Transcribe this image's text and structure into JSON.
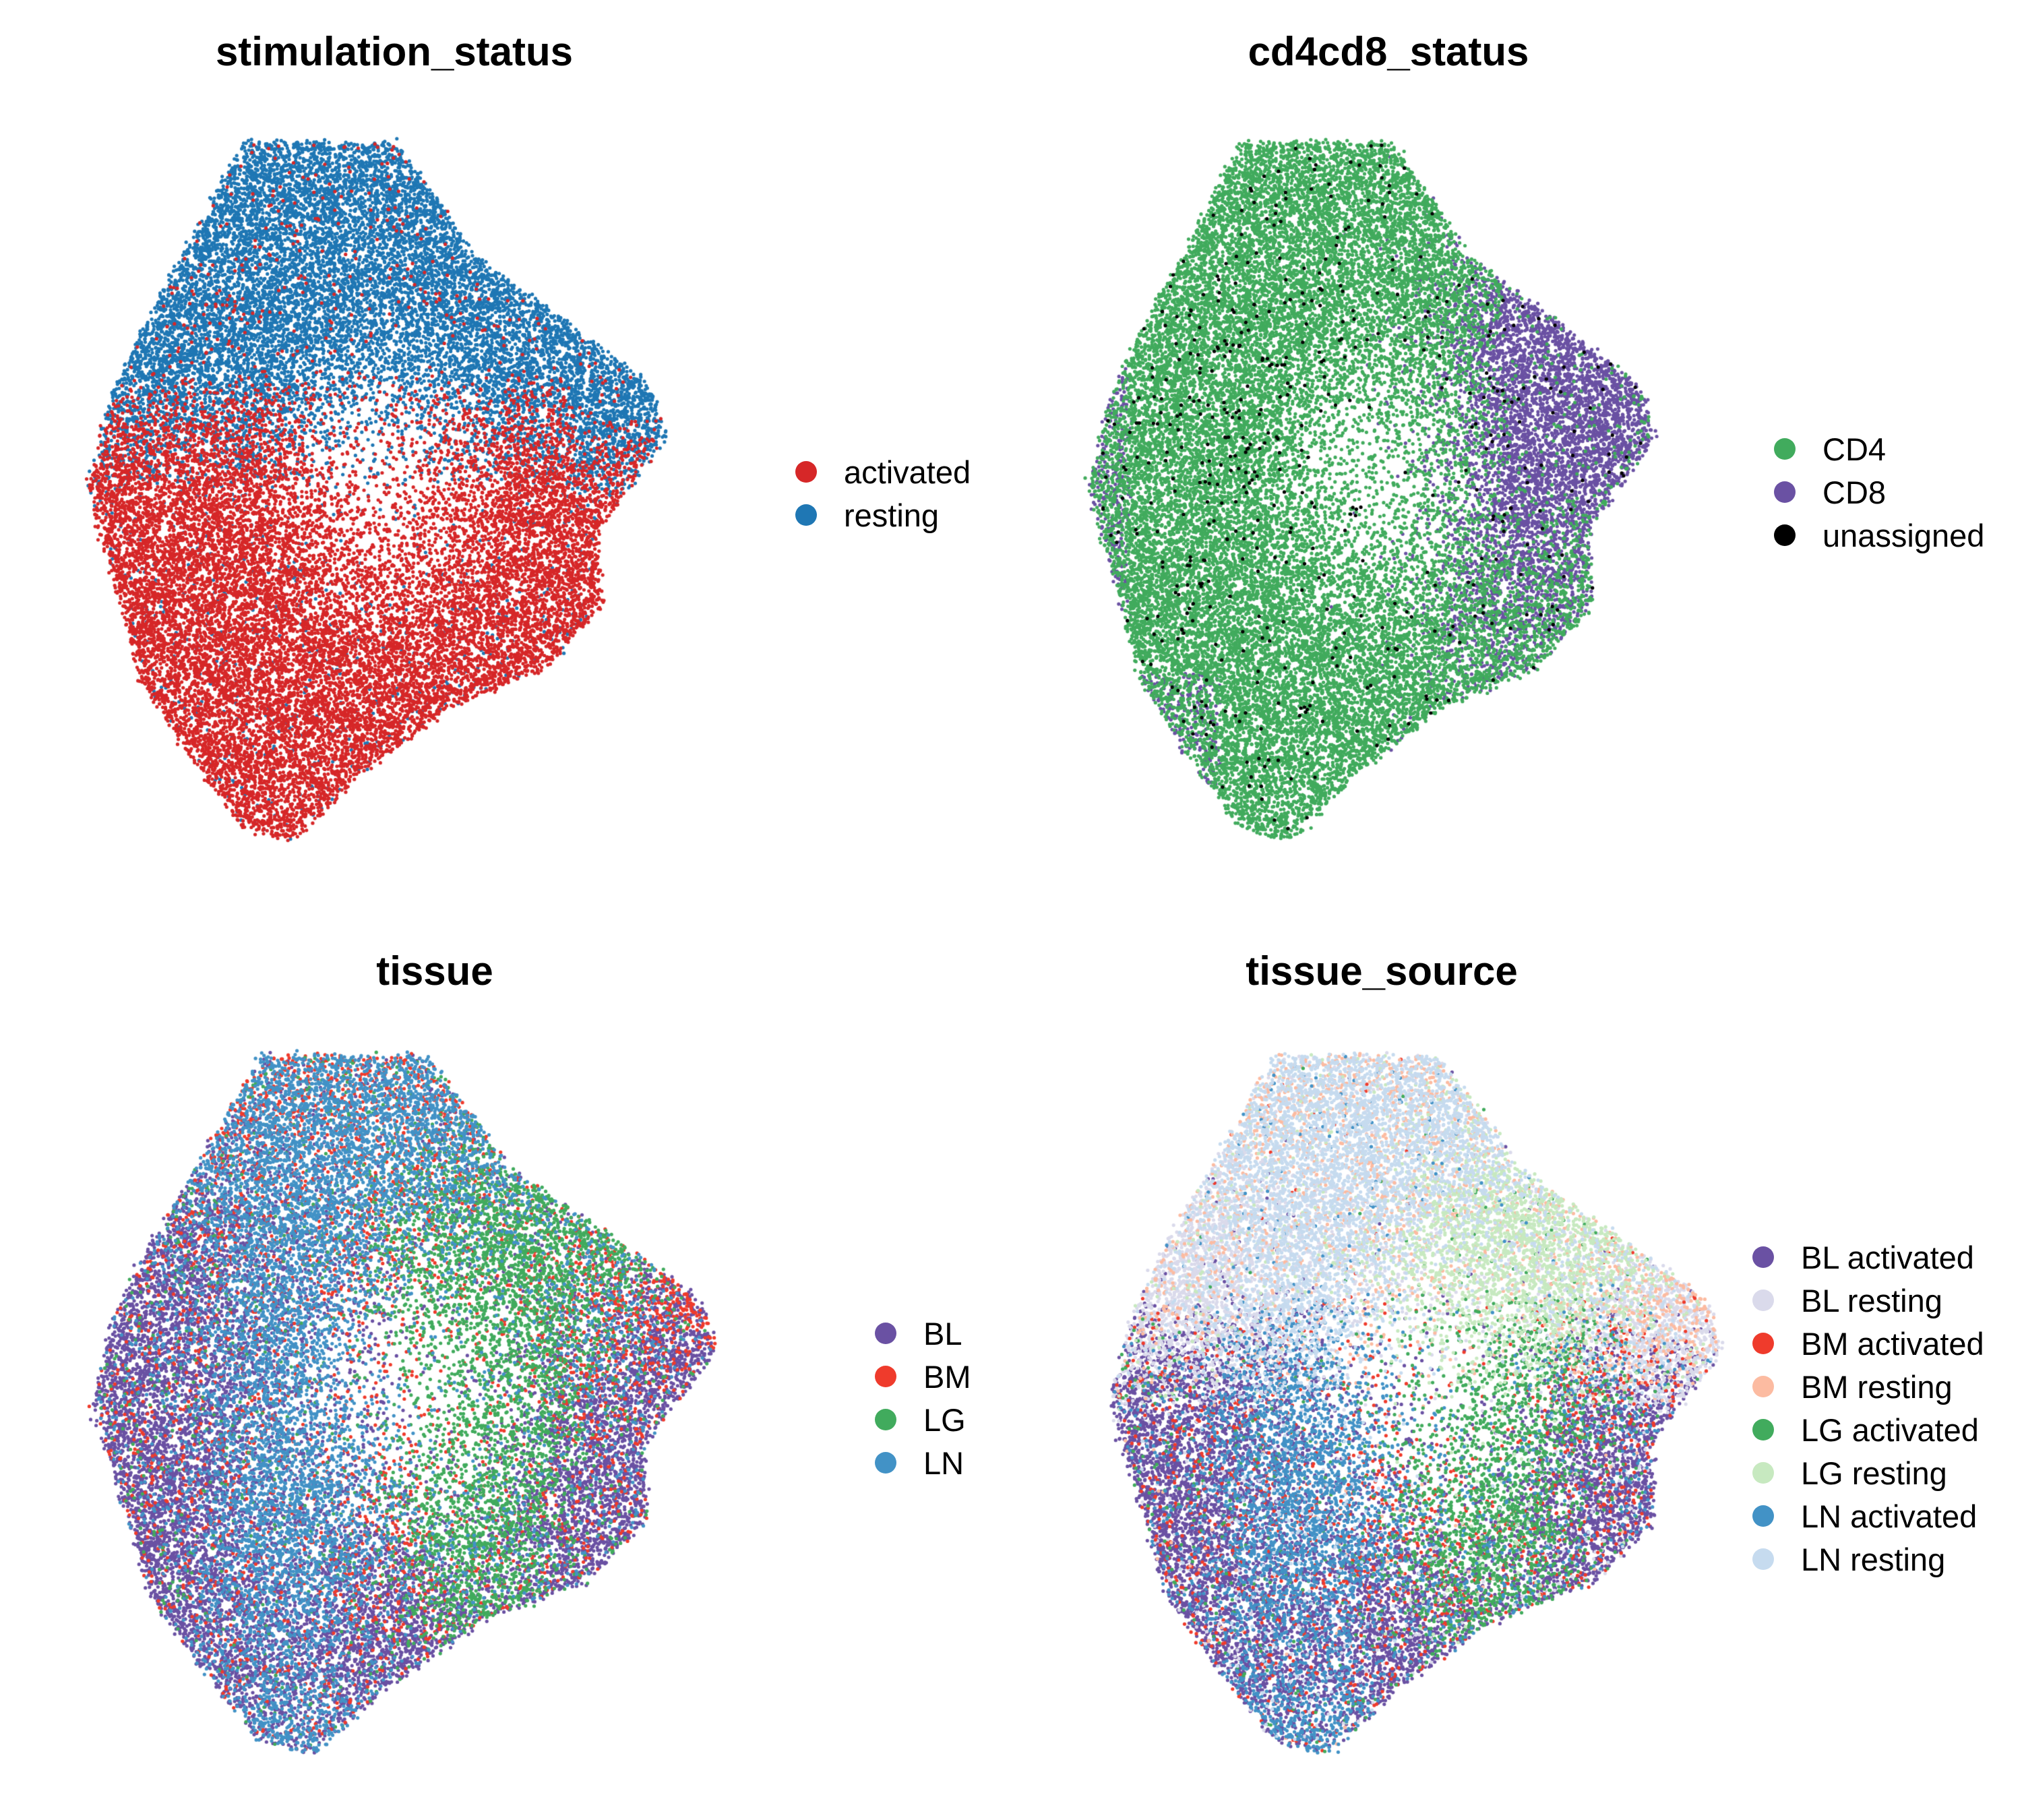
{
  "chart_data": [
    {
      "type": "scatter",
      "title": "stimulation_status",
      "legend_position": "right",
      "grid": false,
      "axes_visible": false,
      "series": [
        {
          "name": "activated",
          "color": "#d62728",
          "layer": 1
        },
        {
          "name": "resting",
          "color": "#1f77b4",
          "layer": 0
        }
      ]
    },
    {
      "type": "scatter",
      "title": "cd4cd8_status",
      "legend_position": "right",
      "grid": false,
      "axes_visible": false,
      "series": [
        {
          "name": "CD4",
          "color": "#41ab5d",
          "layer": 1
        },
        {
          "name": "CD8",
          "color": "#6a51a3",
          "layer": 0
        },
        {
          "name": "unassigned",
          "color": "#000000",
          "layer": 2
        }
      ]
    },
    {
      "type": "scatter",
      "title": "tissue",
      "legend_position": "right",
      "grid": false,
      "axes_visible": false,
      "series": [
        {
          "name": "BL",
          "color": "#6a51a3",
          "layer": 0
        },
        {
          "name": "BM",
          "color": "#ef3b2c",
          "layer": 1
        },
        {
          "name": "LG",
          "color": "#41ab5d",
          "layer": 2
        },
        {
          "name": "LN",
          "color": "#4292c6",
          "layer": 3
        }
      ]
    },
    {
      "type": "scatter",
      "title": "tissue_source",
      "legend_position": "right",
      "grid": false,
      "axes_visible": false,
      "series": [
        {
          "name": "BL activated",
          "color": "#6a51a3",
          "layer": 0
        },
        {
          "name": "BL resting",
          "color": "#dadaeb",
          "layer": 1
        },
        {
          "name": "BM activated",
          "color": "#ef3b2c",
          "layer": 2
        },
        {
          "name": "BM resting",
          "color": "#fcbba1",
          "layer": 3
        },
        {
          "name": "LG activated",
          "color": "#41ab5d",
          "layer": 4
        },
        {
          "name": "LG resting",
          "color": "#c7e9c0",
          "layer": 5
        },
        {
          "name": "LN activated",
          "color": "#4292c6",
          "layer": 6
        },
        {
          "name": "LN resting",
          "color": "#c6dbef",
          "layer": 7
        }
      ]
    }
  ]
}
